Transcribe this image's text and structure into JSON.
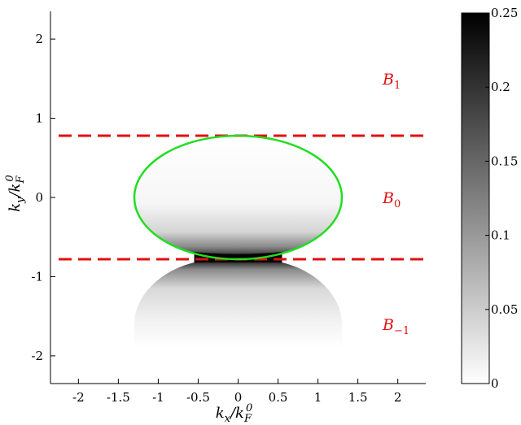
{
  "chart_data": {
    "type": "heatmap",
    "title": "",
    "xlabel": "k_x/k_F^0",
    "ylabel": "k_y/k_F^0",
    "xlim": [
      -2.35,
      2.35
    ],
    "ylim": [
      -2.35,
      2.35
    ],
    "xticks": [
      "-2",
      "-1.5",
      "-1",
      "-0.5",
      "0",
      "0.5",
      "1",
      "1.5",
      "2"
    ],
    "yticks": [
      "2",
      "1",
      "0",
      "-1",
      "-2"
    ],
    "colorbar": {
      "min": 0,
      "max": 0.25,
      "ticks": [
        "0.25",
        "0.2",
        "0.15",
        "0.1",
        "0.05",
        "0"
      ],
      "colormap": "gray (white = 0, black = 0.25)"
    },
    "boundaries": {
      "color": "#e01010",
      "style": "dashed",
      "y_values": [
        0.78,
        -0.78
      ]
    },
    "fermi_contour": {
      "color": "#22dd22",
      "center": [
        0,
        0
      ],
      "semi_axis_x": 1.3,
      "semi_axis_y": 0.78
    },
    "bands": [
      {
        "label": "B",
        "subscript": "1",
        "y": 1.5
      },
      {
        "label": "B",
        "subscript": "0",
        "y": 0.0
      },
      {
        "label": "B",
        "subscript": "−1",
        "y": -1.6
      }
    ],
    "shaded_regions": [
      {
        "name": "upper-lobe",
        "center": [
          0,
          0
        ],
        "semi_axis_x": 1.3,
        "y_range": [
          -0.78,
          0.78
        ],
        "peak_value": 0.25
      },
      {
        "name": "lower-lobe",
        "center": [
          0,
          -0.78
        ],
        "semi_axis_x": 1.3,
        "y_range": [
          -1.9,
          -0.78
        ],
        "peak_value": 0.12
      }
    ]
  }
}
